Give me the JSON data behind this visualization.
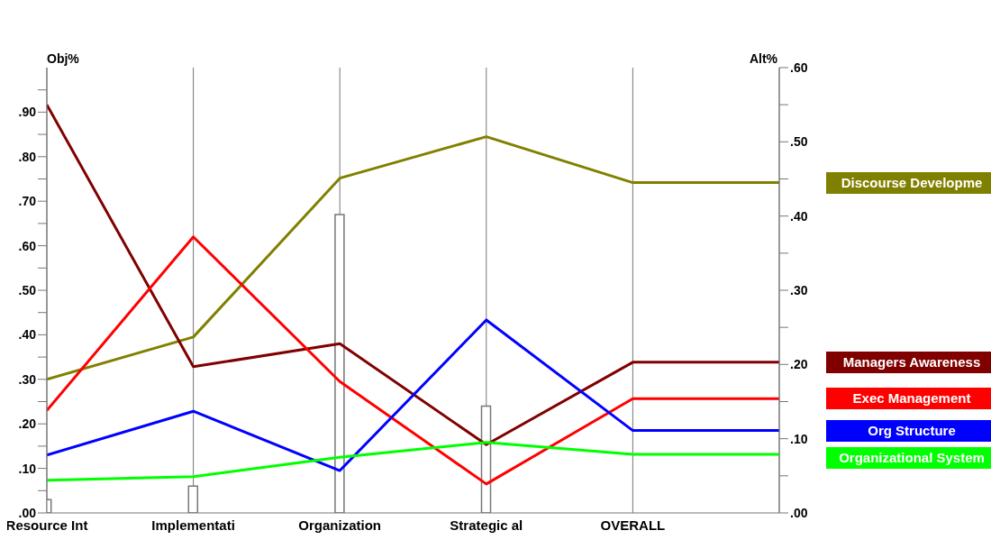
{
  "chart_data": {
    "type": "line",
    "ylabel": "Obj%",
    "y2label": "Alt%",
    "categories": [
      "Resource Int",
      "Implementati",
      "Organization",
      "Strategic al",
      "OVERALL",
      null
    ],
    "ylim": [
      0,
      1.0
    ],
    "yticks": [
      {
        "value": 0,
        "label": ".00"
      },
      {
        "value": 0.05,
        "label": null
      },
      {
        "value": 0.1,
        "label": ".10"
      },
      {
        "value": 0.15,
        "label": null
      },
      {
        "value": 0.2,
        "label": ".20"
      },
      {
        "value": 0.25,
        "label": null
      },
      {
        "value": 0.3,
        "label": ".30"
      },
      {
        "value": 0.35,
        "label": null
      },
      {
        "value": 0.4,
        "label": ".40"
      },
      {
        "value": 0.45,
        "label": null
      },
      {
        "value": 0.5,
        "label": ".50"
      },
      {
        "value": 0.55,
        "label": null
      },
      {
        "value": 0.6,
        "label": ".60"
      },
      {
        "value": 0.65,
        "label": null
      },
      {
        "value": 0.7,
        "label": ".70"
      },
      {
        "value": 0.75,
        "label": null
      },
      {
        "value": 0.8,
        "label": ".80"
      },
      {
        "value": 0.85,
        "label": null
      },
      {
        "value": 0.9,
        "label": ".90"
      },
      {
        "value": 0.95,
        "label": null
      }
    ],
    "y2lim": [
      0,
      0.6
    ],
    "y2ticks": [
      {
        "value": 0,
        "label": ".00"
      },
      {
        "value": 0.05,
        "label": null
      },
      {
        "value": 0.1,
        "label": ".10"
      },
      {
        "value": 0.15,
        "label": null
      },
      {
        "value": 0.2,
        "label": ".20"
      },
      {
        "value": 0.25,
        "label": null
      },
      {
        "value": 0.3,
        "label": ".30"
      },
      {
        "value": 0.35,
        "label": null
      },
      {
        "value": 0.4,
        "label": ".40"
      },
      {
        "value": 0.45,
        "label": null
      },
      {
        "value": 0.5,
        "label": ".50"
      },
      {
        "value": 0.55,
        "label": null
      },
      {
        "value": 0.6,
        "label": ".60"
      }
    ],
    "grid": "x",
    "legend": "right",
    "series": [
      {
        "type": "bar",
        "color": "#ffffff",
        "values": [
          0.03,
          0.06,
          0.67,
          0.24,
          null,
          null
        ]
      },
      {
        "name": "Discourse Developme",
        "axis": "y2",
        "color": "#808000",
        "values": [
          0.18,
          0.237,
          0.451,
          0.507,
          0.445,
          0.445
        ]
      },
      {
        "name": "Managers Awareness",
        "axis": "y2",
        "color": "#800000",
        "values": [
          0.55,
          0.197,
          0.228,
          0.092,
          0.203,
          0.203
        ]
      },
      {
        "name": "Exec Management",
        "axis": "y2",
        "color": "#ff0000",
        "values": [
          0.138,
          0.372,
          0.177,
          0.039,
          0.154,
          0.154
        ]
      },
      {
        "name": "Org Structure",
        "axis": "y2",
        "color": "#0000ff",
        "values": [
          0.078,
          0.137,
          0.057,
          0.26,
          0.111,
          0.111
        ]
      },
      {
        "name": "Organizational System",
        "axis": "y2",
        "color": "#00ff00",
        "values": [
          0.044,
          0.049,
          0.075,
          0.095,
          0.079,
          0.079
        ]
      }
    ]
  }
}
